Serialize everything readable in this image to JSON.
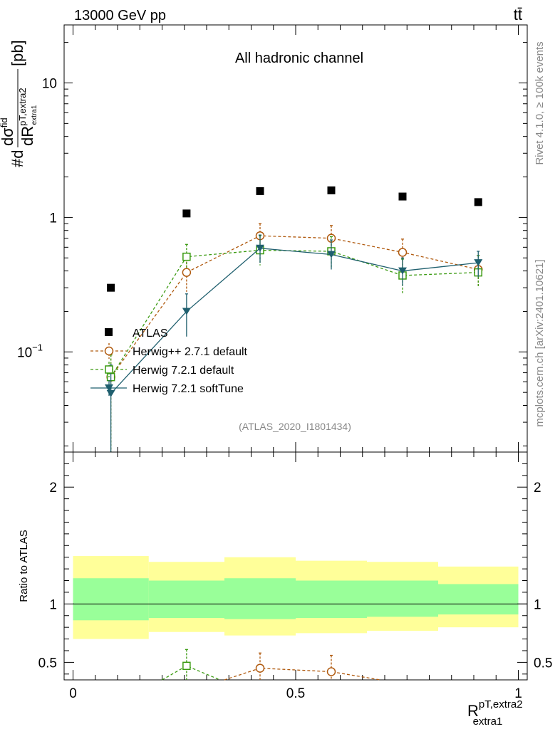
{
  "header": {
    "left": "13000 GeV pp",
    "right": "tt̄"
  },
  "side_labels": {
    "version": "Rivet 4.1.0, ≥ 100k events",
    "site": "mcplots.cern.ch [arXiv:2401.10621]"
  },
  "chart_data": {
    "type": "scatter",
    "title": "All hadronic channel",
    "analysis_tag": "(ATLAS_2020_I1801434)",
    "ylabel_top": "#d dσ^fid / dR^pT,extra2_extra1 [pb]",
    "ylabel_top_parts": {
      "hash": "#d",
      "sigma": "dσ",
      "sup": "fid",
      "dr": "dR",
      "sub": "pT,extra2",
      "subsub": "extra1",
      "unit": "[pb]"
    },
    "ylabel_bottom": "Ratio to ATLAS",
    "xlabel": {
      "main": "R",
      "sup": "pT,extra2",
      "sub": "extra1"
    },
    "xlim": [
      -0.02,
      1.02
    ],
    "ylim_top": [
      0.018,
      27
    ],
    "ylim_bottom": [
      0.35,
      2.3
    ],
    "x_ticks": [
      {
        "v": 0,
        "label": "0"
      },
      {
        "v": 0.5,
        "label": "0.5"
      },
      {
        "v": 1,
        "label": "1"
      }
    ],
    "y_ticks_top": [
      {
        "v": 0.1,
        "base": "10",
        "exp": "−1"
      },
      {
        "v": 1,
        "base": "1",
        "exp": ""
      },
      {
        "v": 10,
        "base": "10",
        "exp": ""
      }
    ],
    "y_ticks_bottom": [
      {
        "v": 0.5,
        "label": "0.5"
      },
      {
        "v": 1,
        "label": "1"
      },
      {
        "v": 2,
        "label": "2"
      }
    ],
    "bin_edges": [
      0,
      0.17,
      0.34,
      0.5,
      0.66,
      0.82,
      1.0
    ],
    "x": [
      0.085,
      0.255,
      0.42,
      0.58,
      0.74,
      0.91
    ],
    "series": [
      {
        "name": "ATLAS",
        "color": "#000000",
        "marker": "square-filled",
        "dashed": false,
        "line": false,
        "values": [
          0.3,
          1.07,
          1.57,
          1.59,
          1.43,
          1.3
        ]
      },
      {
        "name": "Herwig++ 2.7.1 default",
        "color": "#b05a0f",
        "marker": "circle-open",
        "dashed": true,
        "line": true,
        "values": [
          0.065,
          0.39,
          0.73,
          0.7,
          0.55,
          0.41
        ],
        "err_up": [
          0.095,
          0.53,
          0.9,
          0.87,
          0.69,
          0.52
        ],
        "err_down": [
          0.016,
          0.28,
          0.58,
          0.55,
          0.43,
          0.31
        ]
      },
      {
        "name": "Herwig 7.2.1 default",
        "color": "#3a9a10",
        "marker": "square-open",
        "dashed": true,
        "line": true,
        "values": [
          0.065,
          0.51,
          0.57,
          0.56,
          0.37,
          0.39
        ],
        "err_up": [
          0.095,
          0.63,
          0.73,
          0.72,
          0.49,
          0.52
        ],
        "err_down": [
          0.016,
          0.42,
          0.44,
          0.42,
          0.27,
          0.3
        ]
      },
      {
        "name": "Herwig 7.2.1 softTune",
        "color": "#1f5f6e",
        "marker": "triangle-down-filled",
        "dashed": false,
        "line": true,
        "values": [
          0.049,
          0.2,
          0.59,
          0.53,
          0.4,
          0.46
        ],
        "err_up": [
          0.08,
          0.27,
          0.74,
          0.68,
          0.5,
          0.56
        ],
        "err_down": [
          0.016,
          0.13,
          0.46,
          0.41,
          0.31,
          0.36
        ]
      }
    ],
    "ratio_bands": {
      "yellow": [
        [
          0.7,
          1.41
        ],
        [
          0.76,
          1.36
        ],
        [
          0.73,
          1.4
        ],
        [
          0.75,
          1.37
        ],
        [
          0.77,
          1.36
        ],
        [
          0.8,
          1.32
        ]
      ],
      "green": [
        [
          0.86,
          1.22
        ],
        [
          0.88,
          1.2
        ],
        [
          0.87,
          1.22
        ],
        [
          0.88,
          1.2
        ],
        [
          0.89,
          1.2
        ],
        [
          0.91,
          1.17
        ]
      ]
    },
    "ratio_points": [
      {
        "series": "Herwig 7.2.1 default",
        "color": "#3a9a10",
        "marker": "square-open",
        "x": [
          0.255
        ],
        "values": [
          0.47
        ],
        "err_up": [
          0.61
        ],
        "err_down": [
          0.35
        ]
      },
      {
        "series": "Herwig++ 2.7.1 default",
        "color": "#b05a0f",
        "marker": "circle-open",
        "x": [
          0.42,
          0.58
        ],
        "values": [
          0.45,
          0.42
        ],
        "err_up": [
          0.58,
          0.56
        ],
        "err_down": [
          0.35,
          0.35
        ]
      }
    ]
  }
}
